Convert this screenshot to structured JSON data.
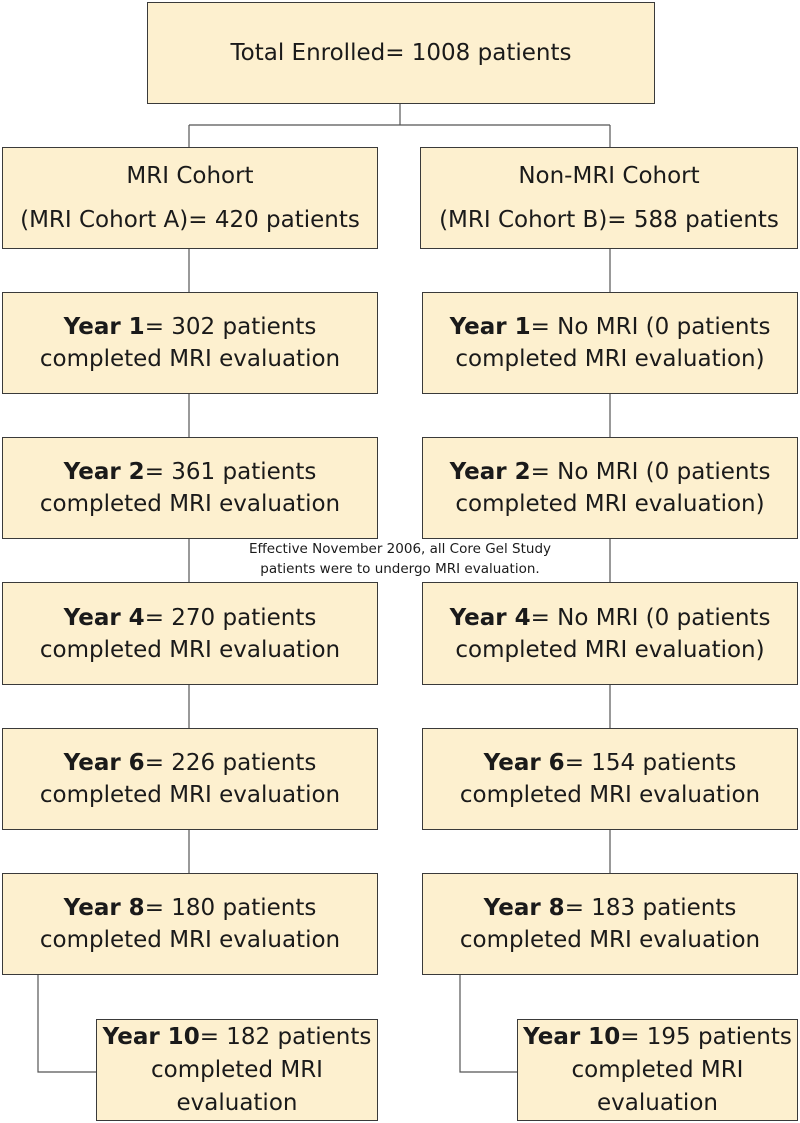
{
  "total": {
    "text": "Total Enrolled= 1008 patients"
  },
  "cohorts": {
    "left": {
      "line1": "MRI Cohort",
      "line2": "(MRI Cohort A)= 420 patients"
    },
    "right": {
      "line1": "Non-MRI Cohort",
      "line2": "(MRI Cohort B)= 588 patients"
    }
  },
  "left": {
    "y1": {
      "year": "Year 1",
      "l1": "= 302 patients",
      "l2": "completed MRI evaluation"
    },
    "y2": {
      "year": "Year 2",
      "l1": "= 361 patients",
      "l2": "completed MRI evaluation"
    },
    "y4": {
      "year": "Year 4",
      "l1": "= 270 patients",
      "l2": "completed MRI evaluation"
    },
    "y6": {
      "year": "Year 6",
      "l1": "= 226 patients",
      "l2": "completed MRI evaluation"
    },
    "y8": {
      "year": "Year 8",
      "l1": "= 180 patients",
      "l2": "completed MRI evaluation"
    },
    "y10": {
      "year": "Year 10",
      "l1": "= 182 patients",
      "l2": "completed MRI",
      "l3": "evaluation"
    }
  },
  "right": {
    "y1": {
      "year": "Year 1",
      "l1": "= No MRI (0 patients",
      "l2": "completed MRI evaluation)"
    },
    "y2": {
      "year": "Year 2",
      "l1": "= No MRI (0 patients",
      "l2": "completed MRI evaluation)"
    },
    "y4": {
      "year": "Year 4",
      "l1": "= No MRI (0 patients",
      "l2": "completed MRI evaluation)"
    },
    "y6": {
      "year": "Year 6",
      "l1": "= 154 patients",
      "l2": "completed MRI evaluation"
    },
    "y8": {
      "year": "Year 8",
      "l1": "= 183 patients",
      "l2": "completed MRI evaluation"
    },
    "y10": {
      "year": "Year 10",
      "l1": "= 195 patients",
      "l2": "completed MRI",
      "l3": "evaluation"
    }
  },
  "note": {
    "line1": "Effective November 2006, all Core Gel Study",
    "line2": "patients were to undergo MRI evaluation."
  },
  "colors": {
    "box_fill": "#fdf0cf",
    "box_border": "#3a3a3a",
    "connector": "#555555"
  }
}
